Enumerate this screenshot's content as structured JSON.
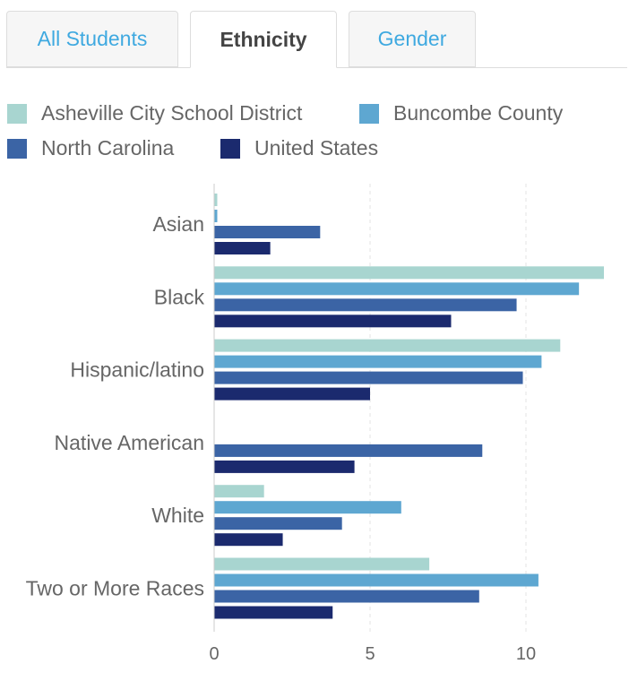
{
  "tabs": [
    {
      "label": "All Students",
      "active": false
    },
    {
      "label": "Ethnicity",
      "active": true
    },
    {
      "label": "Gender",
      "active": false
    }
  ],
  "chart_data": {
    "type": "bar",
    "orientation": "horizontal",
    "categories": [
      "Asian",
      "Black",
      "Hispanic/latino",
      "Native American",
      "White",
      "Two or More Races"
    ],
    "series": [
      {
        "name": "Asheville City School District",
        "color": "#a8d5d0",
        "values": [
          0.1,
          12.5,
          11.1,
          null,
          1.6,
          6.9
        ]
      },
      {
        "name": "Buncombe County",
        "color": "#5ea7d1",
        "values": [
          0.1,
          11.7,
          10.5,
          null,
          6.0,
          10.4
        ]
      },
      {
        "name": "North Carolina",
        "color": "#3b64a5",
        "values": [
          3.4,
          9.7,
          9.9,
          8.6,
          4.1,
          8.5
        ]
      },
      {
        "name": "United States",
        "color": "#1b2a6e",
        "values": [
          1.8,
          7.6,
          5.0,
          4.5,
          2.2,
          3.8
        ]
      }
    ],
    "xlim": [
      0,
      13
    ],
    "xticks": [
      0,
      5,
      10
    ],
    "grid": true,
    "legend_position": "top"
  }
}
